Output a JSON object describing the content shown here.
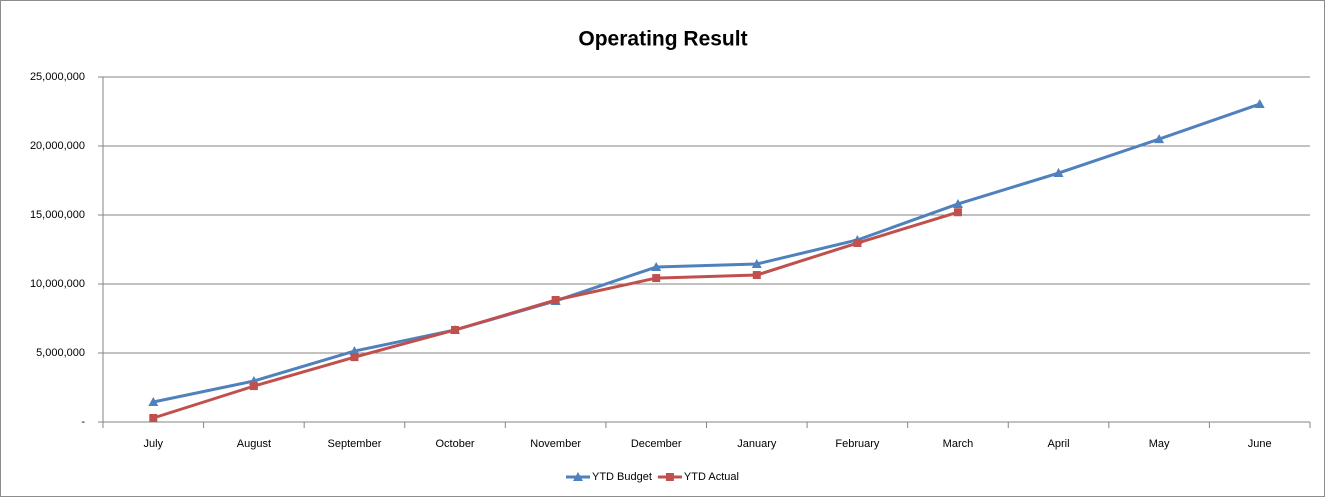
{
  "chart_data": {
    "type": "line",
    "title": "Operating Result",
    "categories": [
      "July",
      "August",
      "September",
      "October",
      "November",
      "December",
      "January",
      "February",
      "March",
      "April",
      "May",
      "June"
    ],
    "series": [
      {
        "name": "YTD Budget",
        "color": "#4f81bd",
        "marker": "triangle",
        "values": [
          1450000,
          2970000,
          5140000,
          6670000,
          8770000,
          11230000,
          11450000,
          13190000,
          15800000,
          18040000,
          20500000,
          23040000
        ]
      },
      {
        "name": "YTD Actual",
        "color": "#c0504d",
        "marker": "square",
        "values": [
          290000,
          2600000,
          4700000,
          6670000,
          8840000,
          10430000,
          10650000,
          12970000,
          15200000,
          null,
          null,
          null
        ]
      }
    ],
    "ylim": [
      0,
      25000000
    ],
    "yticks": [
      {
        "value": 0,
        "label": "-"
      },
      {
        "value": 5000000,
        "label": "5,000,000"
      },
      {
        "value": 10000000,
        "label": "10,000,000"
      },
      {
        "value": 15000000,
        "label": "15,000,000"
      },
      {
        "value": 20000000,
        "label": "20,000,000"
      },
      {
        "value": 25000000,
        "label": "25,000,000"
      }
    ],
    "grid": true,
    "legend": "bottom"
  }
}
